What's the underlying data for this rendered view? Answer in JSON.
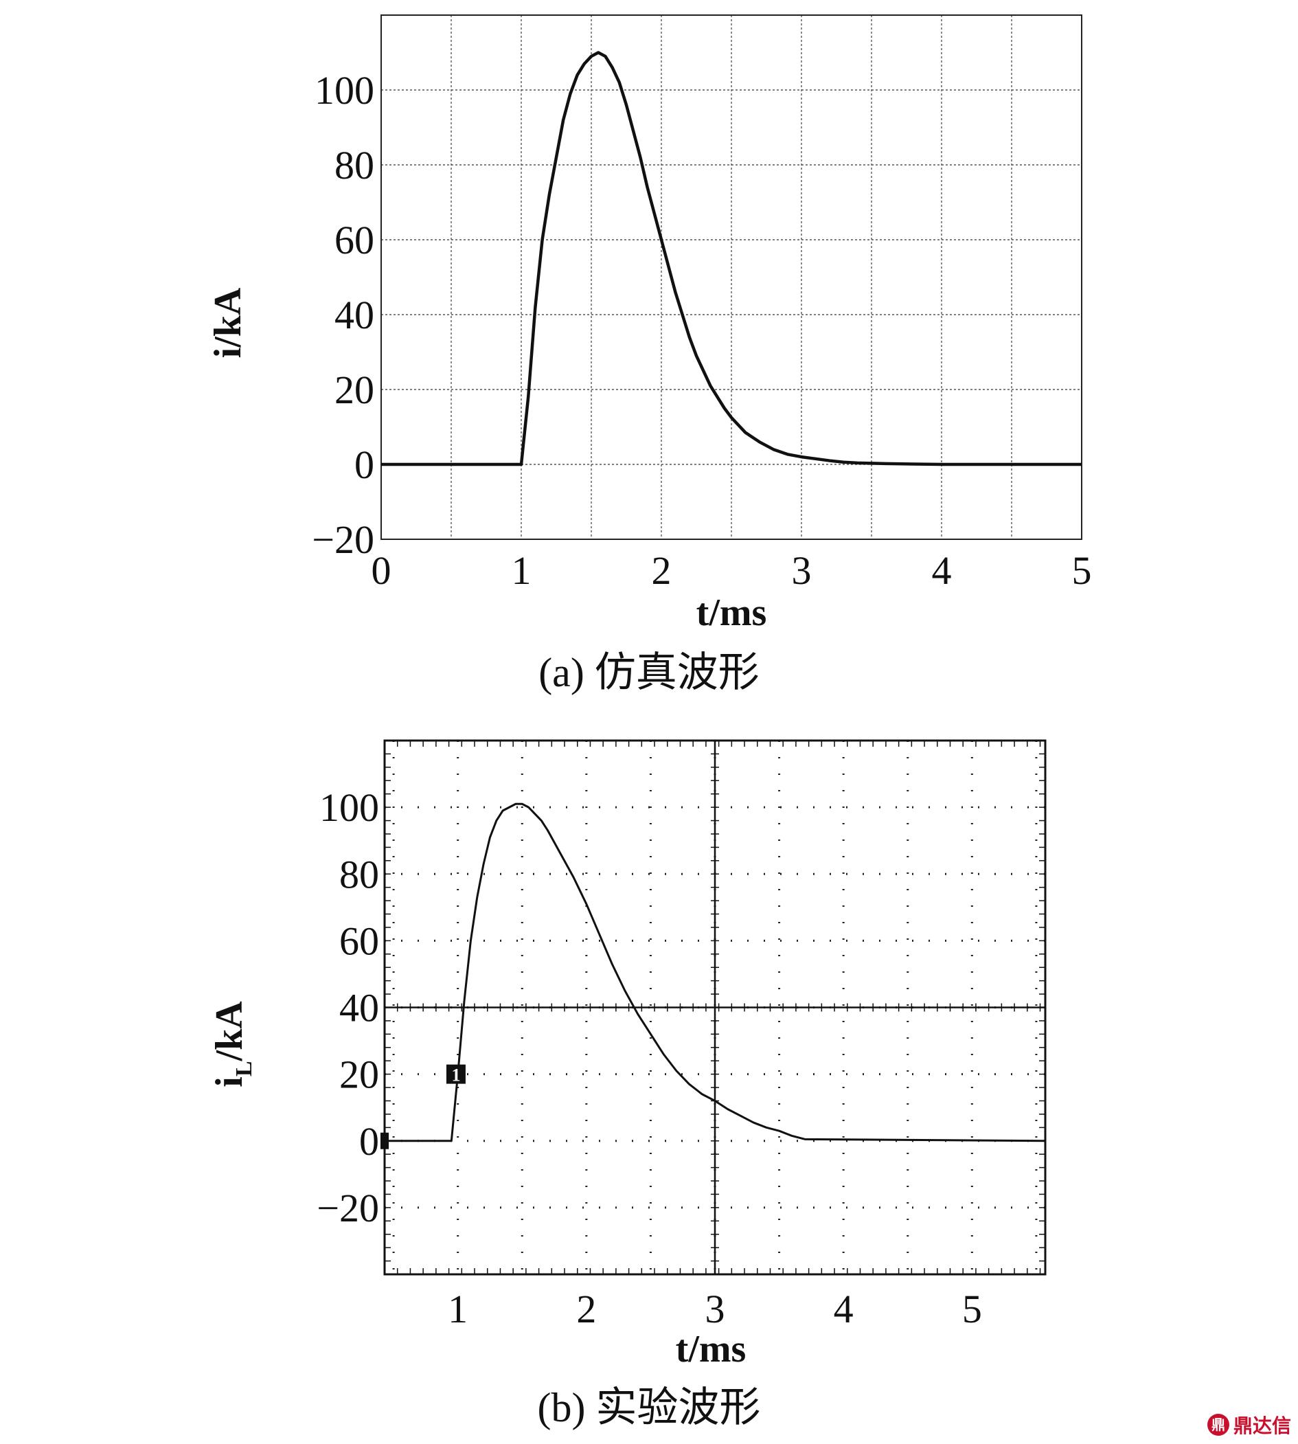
{
  "chart_data": [
    {
      "type": "line",
      "caption": "(a) 仿真波形",
      "xlabel": "t/ms",
      "ylabel": "i/kA",
      "xlim": [
        0,
        5
      ],
      "ylim": [
        -20,
        120
      ],
      "xticks": [
        0,
        1,
        2,
        3,
        4,
        5
      ],
      "xtick_labels": [
        "0",
        "1",
        "2",
        "3",
        "4",
        "5"
      ],
      "yticks": [
        -20,
        0,
        20,
        40,
        60,
        80,
        100
      ],
      "ytick_labels": [
        "−20",
        "0",
        "20",
        "40",
        "60",
        "80",
        "100"
      ],
      "grid": "dotted, 0.5 ms by 20 kA",
      "series": [
        {
          "x": [
            0,
            1.0,
            1.05,
            1.1,
            1.15,
            1.2,
            1.25,
            1.3,
            1.35,
            1.4,
            1.45,
            1.5,
            1.55,
            1.6,
            1.65,
            1.7,
            1.75,
            1.8,
            1.85,
            1.9,
            1.95,
            2.0,
            2.05,
            2.1,
            2.15,
            2.2,
            2.25,
            2.3,
            2.35,
            2.4,
            2.45,
            2.5,
            2.6,
            2.7,
            2.8,
            2.9,
            3.0,
            3.1,
            3.2,
            3.3,
            3.4,
            3.5,
            3.6,
            3.8,
            4.0,
            5.0
          ],
          "y": [
            0,
            0,
            18,
            42,
            60,
            72,
            82,
            92,
            99,
            104,
            107,
            109,
            110,
            109,
            106,
            102,
            96,
            89,
            82,
            74,
            67,
            60,
            53,
            46,
            40,
            34,
            29,
            25,
            21,
            18,
            15,
            12.5,
            8.5,
            6,
            4,
            2.7,
            2,
            1.5,
            1,
            0.6,
            0.4,
            0.3,
            0.2,
            0.1,
            0,
            0
          ]
        }
      ]
    },
    {
      "type": "line",
      "caption": "(b) 实验波形",
      "xlabel": "t/ms",
      "ylabel": "iL/kA",
      "ylabel_main": "i",
      "ylabel_sub": "L",
      "ylabel_tail": "/kA",
      "xlim": [
        0.43,
        5.57
      ],
      "ylim": [
        -40,
        120
      ],
      "xticks": [
        1,
        2,
        3,
        4,
        5
      ],
      "xtick_labels": [
        "1",
        "2",
        "3",
        "4",
        "5"
      ],
      "yticks": [
        -20,
        0,
        20,
        40,
        60,
        80,
        100
      ],
      "ytick_labels": [
        "−20",
        "0",
        "20",
        "40",
        "60",
        "80",
        "100"
      ],
      "grid": "dotted oscilloscope grid, 0.5 ms by 20 kA",
      "marker_label": "1",
      "series": [
        {
          "x": [
            0.43,
            0.95,
            1.0,
            1.05,
            1.1,
            1.15,
            1.2,
            1.25,
            1.3,
            1.35,
            1.4,
            1.45,
            1.5,
            1.55,
            1.6,
            1.65,
            1.7,
            1.8,
            1.9,
            2.0,
            2.1,
            2.2,
            2.3,
            2.4,
            2.5,
            2.6,
            2.7,
            2.8,
            2.9,
            3.0,
            3.1,
            3.2,
            3.3,
            3.4,
            3.5,
            3.6,
            3.7,
            5.57
          ],
          "y": [
            0,
            0,
            20,
            42,
            60,
            73,
            83,
            91,
            96,
            99,
            100,
            101,
            101,
            100,
            98,
            96,
            93,
            86,
            79,
            71,
            62,
            53,
            45,
            38,
            32,
            26,
            21,
            17,
            14,
            12,
            9.5,
            7.5,
            5.5,
            4,
            3,
            1.5,
            0.5,
            0
          ]
        }
      ]
    }
  ],
  "watermark": {
    "icon": "鼎",
    "text": "鼎达信"
  }
}
